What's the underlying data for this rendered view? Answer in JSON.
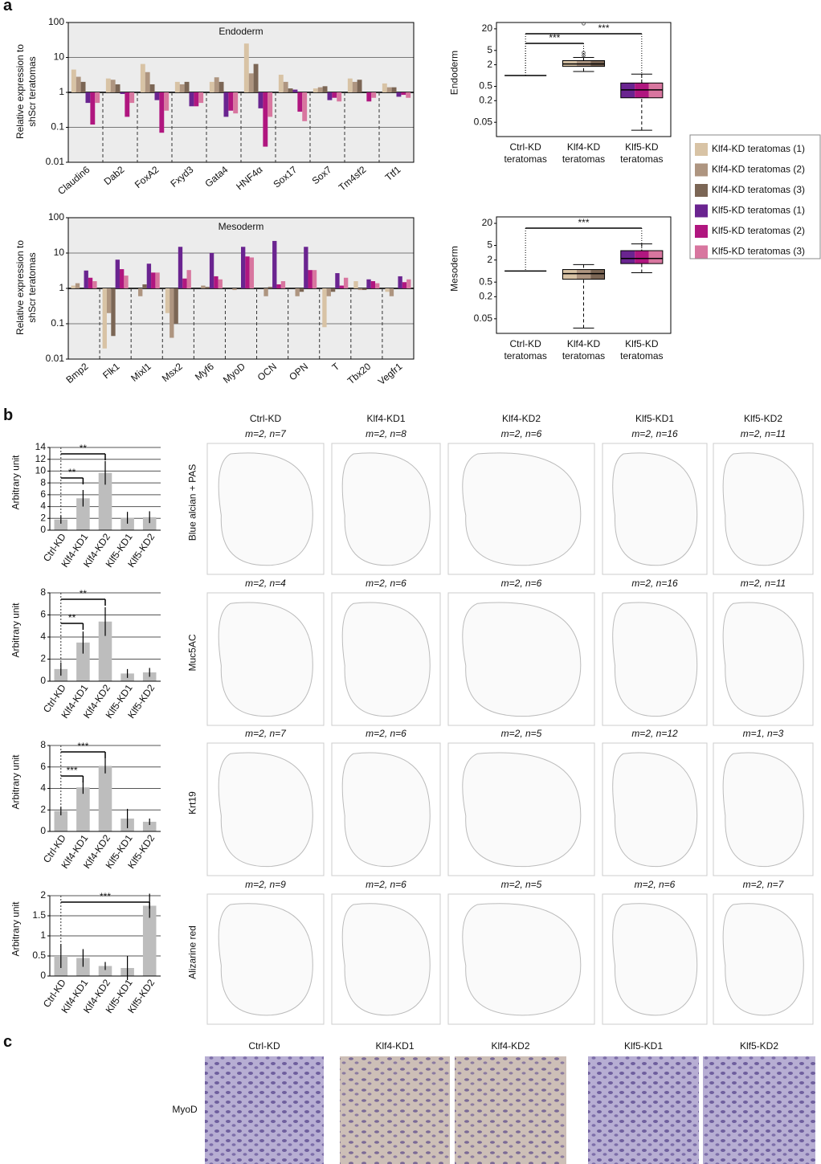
{
  "panel_labels": [
    "a",
    "b",
    "c"
  ],
  "chart_data": [
    {
      "type": "bar",
      "title": "Endoderm",
      "y_label": "Relative expression to shScr teratomas",
      "log_scale": true,
      "grid": true,
      "categories": [
        "Claudin6",
        "Dab2",
        "FoxA2",
        "Fxyd3",
        "Gata4",
        "HNF4α",
        "Sox17",
        "Sox7",
        "Tm4sf2",
        "Ttf1"
      ],
      "series": [
        {
          "name": "Klf4-KD teratomas (1)",
          "color": "#d8c3a5",
          "values": [
            4.5,
            2.5,
            6.5,
            2.0,
            2.0,
            25,
            3.2,
            1.3,
            2.5,
            1.8
          ]
        },
        {
          "name": "Klf4-KD teratomas (2)",
          "color": "#ae9580",
          "values": [
            2.8,
            2.3,
            3.8,
            1.7,
            2.7,
            3.5,
            2.0,
            1.4,
            2.0,
            1.4
          ]
        },
        {
          "name": "Klf4-KD teratomas (3)",
          "color": "#7b6655",
          "values": [
            2.0,
            1.7,
            1.7,
            2.0,
            2.0,
            6.5,
            1.3,
            1.5,
            2.3,
            1.4
          ]
        },
        {
          "name": "Klf5-KD teratomas (1)",
          "color": "#6a2490",
          "values": [
            0.5,
            0.9,
            0.6,
            0.4,
            0.2,
            0.35,
            1.2,
            0.6,
            1.0,
            0.75
          ]
        },
        {
          "name": "Klf5-KD teratomas (2)",
          "color": "#b0167f",
          "values": [
            0.12,
            0.2,
            0.07,
            0.4,
            0.3,
            0.028,
            0.28,
            0.7,
            0.55,
            0.85
          ]
        },
        {
          "name": "Klf5-KD teratomas (3)",
          "color": "#d8769f",
          "values": [
            0.5,
            0.5,
            0.3,
            0.5,
            0.25,
            0.2,
            0.15,
            0.55,
            0.7,
            0.7
          ]
        }
      ],
      "ylim": [
        0.01,
        100
      ],
      "yticks": [
        0.01,
        0.1,
        1,
        10,
        100
      ]
    },
    {
      "type": "bar",
      "title": "Mesoderm",
      "y_label": "Relative expression to shScr teratomas",
      "log_scale": true,
      "grid": true,
      "categories": [
        "Bmp2",
        "Flk1",
        "Mixl1",
        "Msx2",
        "Myf6",
        "MyoD",
        "OCN",
        "OPN",
        "T",
        "Tbx20",
        "Vegfr1"
      ],
      "series": [
        {
          "color": "#d8c3a5",
          "values": [
            1.2,
            0.02,
            1.0,
            0.2,
            1.0,
            1.0,
            1.0,
            1.0,
            0.08,
            1.6,
            0.8
          ]
        },
        {
          "color": "#ae9580",
          "values": [
            1.4,
            0.2,
            0.6,
            0.04,
            1.2,
            0.9,
            0.6,
            0.6,
            0.6,
            0.9,
            0.6
          ]
        },
        {
          "color": "#7b6655",
          "values": [
            1.0,
            0.045,
            1.3,
            0.1,
            1.1,
            1.0,
            1.1,
            0.8,
            0.8,
            0.9,
            1.0
          ]
        },
        {
          "color": "#6a2490",
          "values": [
            3.2,
            6.5,
            5.0,
            15,
            10,
            15,
            22,
            15,
            2.7,
            1.8,
            2.2
          ]
        },
        {
          "color": "#b0167f",
          "values": [
            2.0,
            3.5,
            2.8,
            1.9,
            2.2,
            8,
            1.3,
            3.3,
            1.2,
            1.6,
            1.5
          ]
        },
        {
          "color": "#d8769f",
          "values": [
            1.6,
            2.3,
            2.8,
            3.3,
            1.8,
            7.5,
            1.6,
            3.3,
            2.0,
            1.4,
            1.8
          ]
        }
      ],
      "ylim": [
        0.01,
        100
      ],
      "yticks": [
        0.01,
        0.1,
        1,
        10,
        100
      ]
    },
    {
      "type": "box",
      "y_label": "Endoderm",
      "log_scale": true,
      "categories": [
        "Ctrl-KD teratomas",
        "Klf4-KD teratomas",
        "Klf5-KD teratomas"
      ],
      "boxes": [
        {
          "median": 1
        },
        {
          "whislo": 1.3,
          "q1": 1.8,
          "median": 2.1,
          "q3": 2.6,
          "whishi": 3.2,
          "fliers": [
            3.6,
            4.3,
            28
          ],
          "colors": [
            "#d8c3a5",
            "#ae9580",
            "#7b6655"
          ]
        },
        {
          "whislo": 0.03,
          "q1": 0.24,
          "median": 0.4,
          "q3": 0.62,
          "whishi": 1.1,
          "fliers": [],
          "colors": [
            "#6a2490",
            "#b0167f",
            "#d8769f"
          ]
        }
      ],
      "ylim": [
        0.02,
        30
      ],
      "yticks": [
        0.05,
        0.2,
        0.5,
        2,
        5,
        20
      ],
      "annotations": [
        {
          "text": "***",
          "from": 0,
          "to": 1
        },
        {
          "text": "***",
          "from": 0,
          "to": 2
        }
      ]
    },
    {
      "type": "box",
      "y_label": "Mesoderm",
      "log_scale": true,
      "categories": [
        "Ctrl-KD teratomas",
        "Klf4-KD teratomas",
        "Klf5-KD teratomas"
      ],
      "boxes": [
        {
          "median": 1
        },
        {
          "whislo": 0.028,
          "q1": 0.6,
          "median": 0.85,
          "q3": 1.1,
          "whishi": 1.5,
          "fliers": [],
          "colors": [
            "#d8c3a5",
            "#ae9580",
            "#7b6655"
          ]
        },
        {
          "whislo": 0.9,
          "q1": 1.6,
          "median": 2.2,
          "q3": 3.6,
          "whishi": 5.5,
          "fliers": [],
          "colors": [
            "#6a2490",
            "#b0167f",
            "#d8769f"
          ]
        }
      ],
      "ylim": [
        0.02,
        30
      ],
      "yticks": [
        0.05,
        0.2,
        0.5,
        2,
        5,
        20
      ],
      "annotations": [
        {
          "text": "***",
          "from": 0,
          "to": 2
        }
      ]
    },
    {
      "type": "errorbar",
      "y_label": "Arbitrary unit",
      "color": "#bdbdbd",
      "grid": true,
      "categories": [
        "Ctrl-KD",
        "Klf4-KD1",
        "Klf4-KD2",
        "Klf5-KD1",
        "Klf5-KD2"
      ],
      "values": [
        1.8,
        5.4,
        9.7,
        2.1,
        2.2
      ],
      "errors": [
        0.7,
        1.4,
        2.0,
        1.0,
        1.0
      ],
      "ylim": [
        0,
        14
      ],
      "yticks": [
        0,
        2,
        4,
        6,
        8,
        10,
        12,
        14
      ],
      "annotations": [
        {
          "text": "**",
          "from": 0,
          "to": 1
        },
        {
          "text": "**",
          "from": 0,
          "to": 2
        }
      ]
    },
    {
      "type": "errorbar",
      "y_label": "Arbitrary unit",
      "color": "#bdbdbd",
      "grid": true,
      "categories": [
        "Ctrl-KD",
        "Klf4-KD1",
        "Klf4-KD2",
        "Klf5-KD1",
        "Klf5-KD2"
      ],
      "values": [
        1.1,
        3.5,
        5.4,
        0.7,
        0.8
      ],
      "errors": [
        0.6,
        1.0,
        1.3,
        0.4,
        0.4
      ],
      "ylim": [
        0,
        8
      ],
      "yticks": [
        0,
        2,
        4,
        6,
        8
      ],
      "annotations": [
        {
          "text": "**",
          "from": 0,
          "to": 1
        },
        {
          "text": "**",
          "from": 0,
          "to": 2
        }
      ]
    },
    {
      "type": "errorbar",
      "y_label": "Arbitrary unit",
      "color": "#bdbdbd",
      "grid": true,
      "categories": [
        "Ctrl-KD",
        "Klf4-KD1",
        "Klf4-KD2",
        "Klf5-KD1",
        "Klf5-KD2"
      ],
      "values": [
        1.9,
        4.1,
        6.1,
        1.2,
        0.9
      ],
      "errors": [
        0.4,
        0.6,
        0.7,
        0.9,
        0.3
      ],
      "ylim": [
        0,
        8
      ],
      "yticks": [
        0,
        2,
        4,
        6,
        8
      ],
      "annotations": [
        {
          "text": "***",
          "from": 0,
          "to": 1
        },
        {
          "text": "***",
          "from": 0,
          "to": 2
        }
      ]
    },
    {
      "type": "errorbar",
      "y_label": "Arbitrary unit",
      "color": "#bdbdbd",
      "grid": true,
      "categories": [
        "Ctrl-KD",
        "Klf4-KD1",
        "Klf4-KD2",
        "Klf5-KD1",
        "Klf5-KD2"
      ],
      "values": [
        0.5,
        0.45,
        0.25,
        0.2,
        1.75
      ],
      "errors": [
        0.3,
        0.22,
        0.1,
        0.3,
        0.3
      ],
      "ylim": [
        0,
        2
      ],
      "yticks": [
        0,
        0.5,
        1,
        1.5,
        2
      ],
      "annotations": [
        {
          "text": "***",
          "from": 0,
          "to": 4
        }
      ]
    }
  ],
  "panel_b": {
    "columns": [
      "Ctrl-KD",
      "Klf4-KD1",
      "Klf4-KD2",
      "Klf5-KD1",
      "Klf5-KD2"
    ],
    "rows": [
      {
        "label": "Blue alcian + PAS",
        "counts": [
          "m=2, n=7",
          "m=2, n=8",
          "m=2, n=6",
          "m=2, n=16",
          "m=2, n=11"
        ]
      },
      {
        "label": "Muc5AC",
        "counts": [
          "m=2, n=4",
          "m=2, n=6",
          "m=2, n=6",
          "m=2, n=16",
          "m=2, n=11"
        ]
      },
      {
        "label": "Krt19",
        "counts": [
          "m=2, n=7",
          "m=2, n=6",
          "m=2, n=5",
          "m=2, n=12",
          "m=1, n=3"
        ]
      },
      {
        "label": "Alizarine red",
        "counts": [
          "m=2, n=9",
          "m=2, n=6",
          "m=2, n=5",
          "m=2, n=6",
          "m=2, n=7"
        ]
      }
    ]
  },
  "panel_c": {
    "columns": [
      "Ctrl-KD",
      "Klf4-KD1",
      "Klf4-KD2",
      "Klf5-KD1",
      "Klf5-KD2"
    ],
    "row_label": "MyoD"
  }
}
